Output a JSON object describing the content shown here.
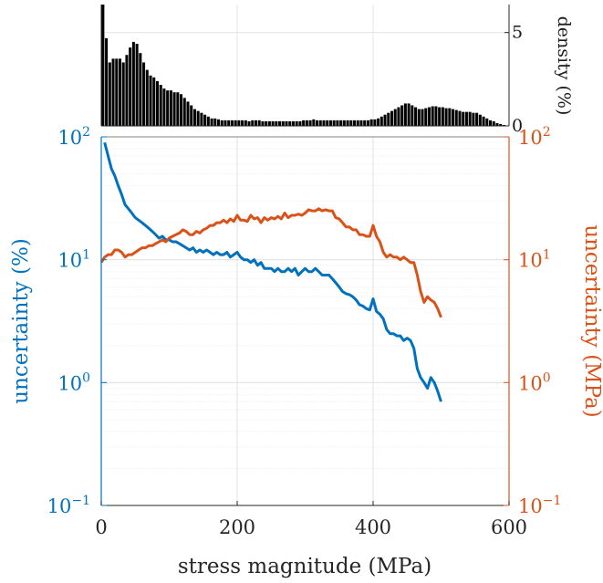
{
  "chart_data": [
    {
      "type": "bar",
      "title": "",
      "xlim": [
        0,
        600
      ],
      "ylim": [
        0,
        6.5
      ],
      "ylabel": "density (%)",
      "yticks": [
        {
          "value": 0,
          "label": "0"
        },
        {
          "value": 5,
          "label": "5"
        }
      ],
      "grid": true,
      "bar_color": "#000000",
      "bin_width": 5,
      "x": [
        2.5,
        7.5,
        12.5,
        17.5,
        22.5,
        27.5,
        32.5,
        37.5,
        42.5,
        47.5,
        52.5,
        57.5,
        62.5,
        67.5,
        72.5,
        77.5,
        82.5,
        87.5,
        92.5,
        97.5,
        102.5,
        107.5,
        112.5,
        117.5,
        122.5,
        127.5,
        132.5,
        137.5,
        142.5,
        147.5,
        152.5,
        157.5,
        162.5,
        167.5,
        172.5,
        177.5,
        182.5,
        187.5,
        192.5,
        197.5,
        202.5,
        207.5,
        212.5,
        217.5,
        222.5,
        227.5,
        232.5,
        237.5,
        242.5,
        247.5,
        252.5,
        257.5,
        262.5,
        267.5,
        272.5,
        277.5,
        282.5,
        287.5,
        292.5,
        297.5,
        302.5,
        307.5,
        312.5,
        317.5,
        322.5,
        327.5,
        332.5,
        337.5,
        342.5,
        347.5,
        352.5,
        357.5,
        362.5,
        367.5,
        372.5,
        377.5,
        382.5,
        387.5,
        392.5,
        397.5,
        402.5,
        407.5,
        412.5,
        417.5,
        422.5,
        427.5,
        432.5,
        437.5,
        442.5,
        447.5,
        452.5,
        457.5,
        462.5,
        467.5,
        472.5,
        477.5,
        482.5,
        487.5,
        492.5,
        497.5,
        502.5,
        507.5,
        512.5,
        517.5,
        522.5,
        527.5,
        532.5,
        537.5,
        542.5,
        547.5,
        552.5,
        557.5,
        562.5,
        567.5,
        572.5,
        577.5,
        582.5,
        587.5,
        592.5,
        597.5
      ],
      "values": [
        6.8,
        4.7,
        3.4,
        3.6,
        3.6,
        3.6,
        3.4,
        3.8,
        4.2,
        4.5,
        4.4,
        3.9,
        3.4,
        3.0,
        2.7,
        2.6,
        2.4,
        2.2,
        2.0,
        1.9,
        1.9,
        1.8,
        1.8,
        1.7,
        1.5,
        1.3,
        1.1,
        0.9,
        0.8,
        0.7,
        0.6,
        0.5,
        0.4,
        0.4,
        0.35,
        0.3,
        0.3,
        0.3,
        0.3,
        0.3,
        0.3,
        0.3,
        0.3,
        0.25,
        0.3,
        0.3,
        0.3,
        0.25,
        0.25,
        0.25,
        0.25,
        0.25,
        0.25,
        0.25,
        0.25,
        0.25,
        0.25,
        0.25,
        0.25,
        0.3,
        0.3,
        0.3,
        0.35,
        0.3,
        0.3,
        0.3,
        0.3,
        0.3,
        0.3,
        0.3,
        0.3,
        0.3,
        0.3,
        0.3,
        0.3,
        0.3,
        0.3,
        0.3,
        0.3,
        0.35,
        0.35,
        0.4,
        0.5,
        0.6,
        0.7,
        0.8,
        0.9,
        1.0,
        1.1,
        1.2,
        1.2,
        1.1,
        1.0,
        0.9,
        0.9,
        0.95,
        1.0,
        1.05,
        1.05,
        1.0,
        1.0,
        0.95,
        0.95,
        0.9,
        0.85,
        0.8,
        0.75,
        0.75,
        0.75,
        0.7,
        0.7,
        0.6,
        0.5,
        0.4,
        0.3,
        0.25,
        0.15,
        0.1,
        0.05,
        0.0
      ]
    },
    {
      "type": "line",
      "title": "",
      "xlabel": "stress magnitude (MPa)",
      "xlim": [
        0,
        600
      ],
      "xticks": [
        {
          "value": 0,
          "label": "0"
        },
        {
          "value": 200,
          "label": "200"
        },
        {
          "value": 400,
          "label": "400"
        },
        {
          "value": 600,
          "label": "600"
        }
      ],
      "yscale": "log",
      "grid": true,
      "minor_grid": true,
      "left_axis": {
        "label": "uncertainty (%)",
        "color": "#0072BD",
        "ylim": [
          0.1,
          100
        ],
        "ticks": [
          {
            "value": 0.1,
            "base": "10",
            "exp": "−1"
          },
          {
            "value": 1,
            "base": "10",
            "exp": "0"
          },
          {
            "value": 10,
            "base": "10",
            "exp": "1"
          },
          {
            "value": 100,
            "base": "10",
            "exp": "2"
          }
        ]
      },
      "right_axis": {
        "label": "uncertainty (MPa)",
        "color": "#D95319",
        "ylim": [
          0.1,
          100
        ],
        "ticks": [
          {
            "value": 0.1,
            "base": "10",
            "exp": "−1"
          },
          {
            "value": 1,
            "base": "10",
            "exp": "0"
          },
          {
            "value": 10,
            "base": "10",
            "exp": "1"
          },
          {
            "value": 100,
            "base": "10",
            "exp": "2"
          }
        ]
      },
      "series": [
        {
          "axis": "left",
          "color": "#0072BD",
          "x": [
            5,
            10,
            15,
            20,
            25,
            30,
            35,
            40,
            45,
            50,
            55,
            60,
            65,
            70,
            75,
            80,
            85,
            90,
            95,
            100,
            105,
            110,
            115,
            120,
            125,
            130,
            135,
            140,
            145,
            150,
            155,
            160,
            165,
            170,
            175,
            180,
            185,
            190,
            195,
            200,
            205,
            210,
            215,
            220,
            225,
            230,
            235,
            240,
            245,
            250,
            255,
            260,
            265,
            270,
            275,
            280,
            285,
            290,
            295,
            300,
            305,
            310,
            315,
            320,
            325,
            330,
            335,
            340,
            345,
            350,
            355,
            360,
            365,
            370,
            375,
            380,
            385,
            390,
            395,
            400,
            405,
            410,
            415,
            420,
            425,
            430,
            435,
            440,
            445,
            450,
            455,
            460,
            465,
            470,
            475,
            480,
            485,
            490,
            495,
            500
          ],
          "values": [
            90,
            70,
            55,
            48,
            40,
            34,
            28,
            26,
            24,
            22,
            21,
            20,
            19,
            18,
            17,
            16,
            15,
            15.5,
            14.5,
            14.5,
            14,
            14,
            13.5,
            13,
            12.5,
            12,
            12.5,
            11.5,
            12,
            11.5,
            12,
            11.5,
            11,
            11.5,
            11,
            11,
            11.5,
            10.5,
            11,
            11.5,
            10.5,
            10,
            10,
            9.5,
            10,
            9,
            9.5,
            8.5,
            8.5,
            8.5,
            8,
            8.5,
            8,
            8,
            8.5,
            8,
            8.5,
            7.5,
            8,
            8.5,
            8,
            8,
            8.5,
            8,
            7.5,
            7.5,
            7.5,
            7,
            6.5,
            6,
            5.5,
            5.3,
            5.2,
            5,
            4.7,
            4.3,
            4.2,
            4,
            3.9,
            4.8,
            3.8,
            3.6,
            3.3,
            2.7,
            2.5,
            2.5,
            2.4,
            2.4,
            2.2,
            2.3,
            2.2,
            1.9,
            1.3,
            1.1,
            1.0,
            0.9,
            1.1,
            1.0,
            0.85,
            0.7
          ]
        },
        {
          "axis": "right",
          "color": "#D95319",
          "x": [
            0,
            5,
            10,
            15,
            20,
            25,
            30,
            35,
            40,
            45,
            50,
            55,
            60,
            65,
            70,
            75,
            80,
            85,
            90,
            95,
            100,
            105,
            110,
            115,
            120,
            125,
            130,
            135,
            140,
            145,
            150,
            155,
            160,
            165,
            170,
            175,
            180,
            185,
            190,
            195,
            200,
            205,
            210,
            215,
            220,
            225,
            230,
            235,
            240,
            245,
            250,
            255,
            260,
            265,
            270,
            275,
            280,
            285,
            290,
            295,
            300,
            305,
            310,
            315,
            320,
            325,
            330,
            335,
            340,
            345,
            350,
            355,
            360,
            365,
            370,
            375,
            380,
            385,
            390,
            395,
            400,
            405,
            410,
            415,
            420,
            425,
            430,
            435,
            440,
            445,
            450,
            455,
            460,
            465,
            470,
            475,
            480,
            485,
            490,
            495,
            500
          ],
          "values": [
            9.5,
            10.5,
            11,
            11,
            12,
            12,
            11.5,
            10.5,
            11,
            11,
            11.5,
            12,
            12.5,
            12.5,
            13,
            13,
            13.5,
            14,
            14.5,
            14,
            15,
            15.5,
            16,
            16.5,
            17.5,
            17,
            16,
            16,
            17,
            16.5,
            17.5,
            18,
            19,
            19,
            20,
            20,
            21,
            20,
            21.5,
            20.5,
            23,
            21,
            21,
            20.5,
            23,
            21.5,
            22,
            20,
            22,
            21,
            22,
            21.5,
            22.5,
            21.5,
            24,
            22,
            23,
            23,
            23.5,
            23,
            24,
            25.5,
            25,
            25,
            26,
            25,
            25.5,
            25,
            25,
            22,
            21.5,
            20,
            18.5,
            18.5,
            17.5,
            17.5,
            16,
            16,
            15.5,
            15.5,
            19,
            15.5,
            14,
            11.5,
            10.5,
            11,
            10.5,
            10.5,
            10,
            10.5,
            10,
            9.5,
            9.5,
            7.5,
            5.5,
            4.5,
            5,
            4.7,
            4.5,
            4.0,
            3.4
          ]
        }
      ]
    }
  ]
}
